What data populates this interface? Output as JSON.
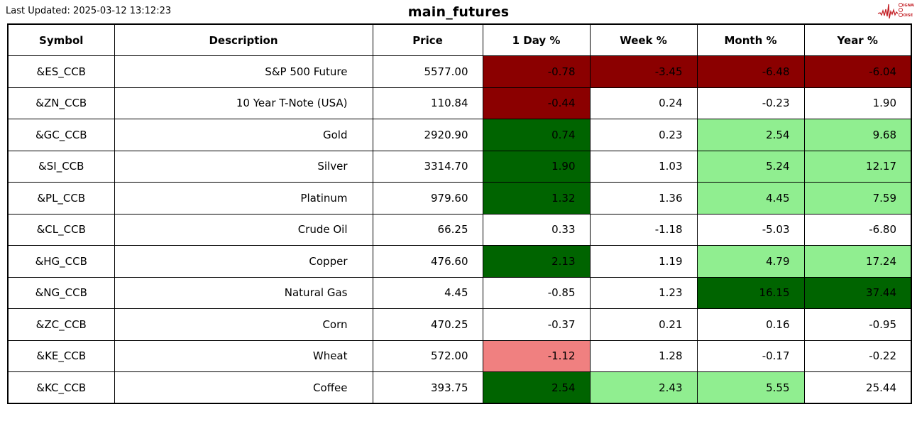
{
  "header": {
    "last_updated": "Last Updated: 2025-03-12 13:12:23",
    "title": "main_futures",
    "logo": {
      "name": "signal-noise-logo",
      "line1": "SIGNAL",
      "line2": "NOISE",
      "color": "#c42127"
    }
  },
  "colors": {
    "dark_red": "#8b0000",
    "light_red": "#f08080",
    "dark_green": "#006400",
    "light_green": "#90ee90",
    "white": "#ffffff",
    "border": "#000000"
  },
  "chart_data": {
    "type": "table",
    "title": "main_futures",
    "columns": [
      "Symbol",
      "Description",
      "Price",
      "1 Day %",
      "Week %",
      "Month %",
      "Year %"
    ],
    "rows": [
      {
        "symbol": "&ES_CCB",
        "description": "S&P 500 Future",
        "price": "5577.00",
        "pct": [
          "-0.78",
          "-3.45",
          "-6.48",
          "-6.04"
        ],
        "pct_colors": [
          "dark_red",
          "dark_red",
          "dark_red",
          "dark_red"
        ]
      },
      {
        "symbol": "&ZN_CCB",
        "description": "10 Year T-Note (USA)",
        "price": "110.84",
        "pct": [
          "-0.44",
          "0.24",
          "-0.23",
          "1.90"
        ],
        "pct_colors": [
          "dark_red",
          "white",
          "white",
          "white"
        ]
      },
      {
        "symbol": "&GC_CCB",
        "description": "Gold",
        "price": "2920.90",
        "pct": [
          "0.74",
          "0.23",
          "2.54",
          "9.68"
        ],
        "pct_colors": [
          "dark_green",
          "white",
          "light_green",
          "light_green"
        ]
      },
      {
        "symbol": "&SI_CCB",
        "description": "Silver",
        "price": "3314.70",
        "pct": [
          "1.90",
          "1.03",
          "5.24",
          "12.17"
        ],
        "pct_colors": [
          "dark_green",
          "white",
          "light_green",
          "light_green"
        ]
      },
      {
        "symbol": "&PL_CCB",
        "description": "Platinum",
        "price": "979.60",
        "pct": [
          "1.32",
          "1.36",
          "4.45",
          "7.59"
        ],
        "pct_colors": [
          "dark_green",
          "white",
          "light_green",
          "light_green"
        ]
      },
      {
        "symbol": "&CL_CCB",
        "description": "Crude Oil",
        "price": "66.25",
        "pct": [
          "0.33",
          "-1.18",
          "-5.03",
          "-6.80"
        ],
        "pct_colors": [
          "white",
          "white",
          "white",
          "white"
        ]
      },
      {
        "symbol": "&HG_CCB",
        "description": "Copper",
        "price": "476.60",
        "pct": [
          "2.13",
          "1.19",
          "4.79",
          "17.24"
        ],
        "pct_colors": [
          "dark_green",
          "white",
          "light_green",
          "light_green"
        ]
      },
      {
        "symbol": "&NG_CCB",
        "description": "Natural Gas",
        "price": "4.45",
        "pct": [
          "-0.85",
          "1.23",
          "16.15",
          "37.44"
        ],
        "pct_colors": [
          "white",
          "white",
          "dark_green",
          "dark_green"
        ]
      },
      {
        "symbol": "&ZC_CCB",
        "description": "Corn",
        "price": "470.25",
        "pct": [
          "-0.37",
          "0.21",
          "0.16",
          "-0.95"
        ],
        "pct_colors": [
          "white",
          "white",
          "white",
          "white"
        ]
      },
      {
        "symbol": "&KE_CCB",
        "description": "Wheat",
        "price": "572.00",
        "pct": [
          "-1.12",
          "1.28",
          "-0.17",
          "-0.22"
        ],
        "pct_colors": [
          "light_red",
          "white",
          "white",
          "white"
        ]
      },
      {
        "symbol": "&KC_CCB",
        "description": "Coffee",
        "price": "393.75",
        "pct": [
          "2.54",
          "2.43",
          "5.55",
          "25.44"
        ],
        "pct_colors": [
          "dark_green",
          "light_green",
          "light_green",
          "white"
        ]
      }
    ]
  }
}
